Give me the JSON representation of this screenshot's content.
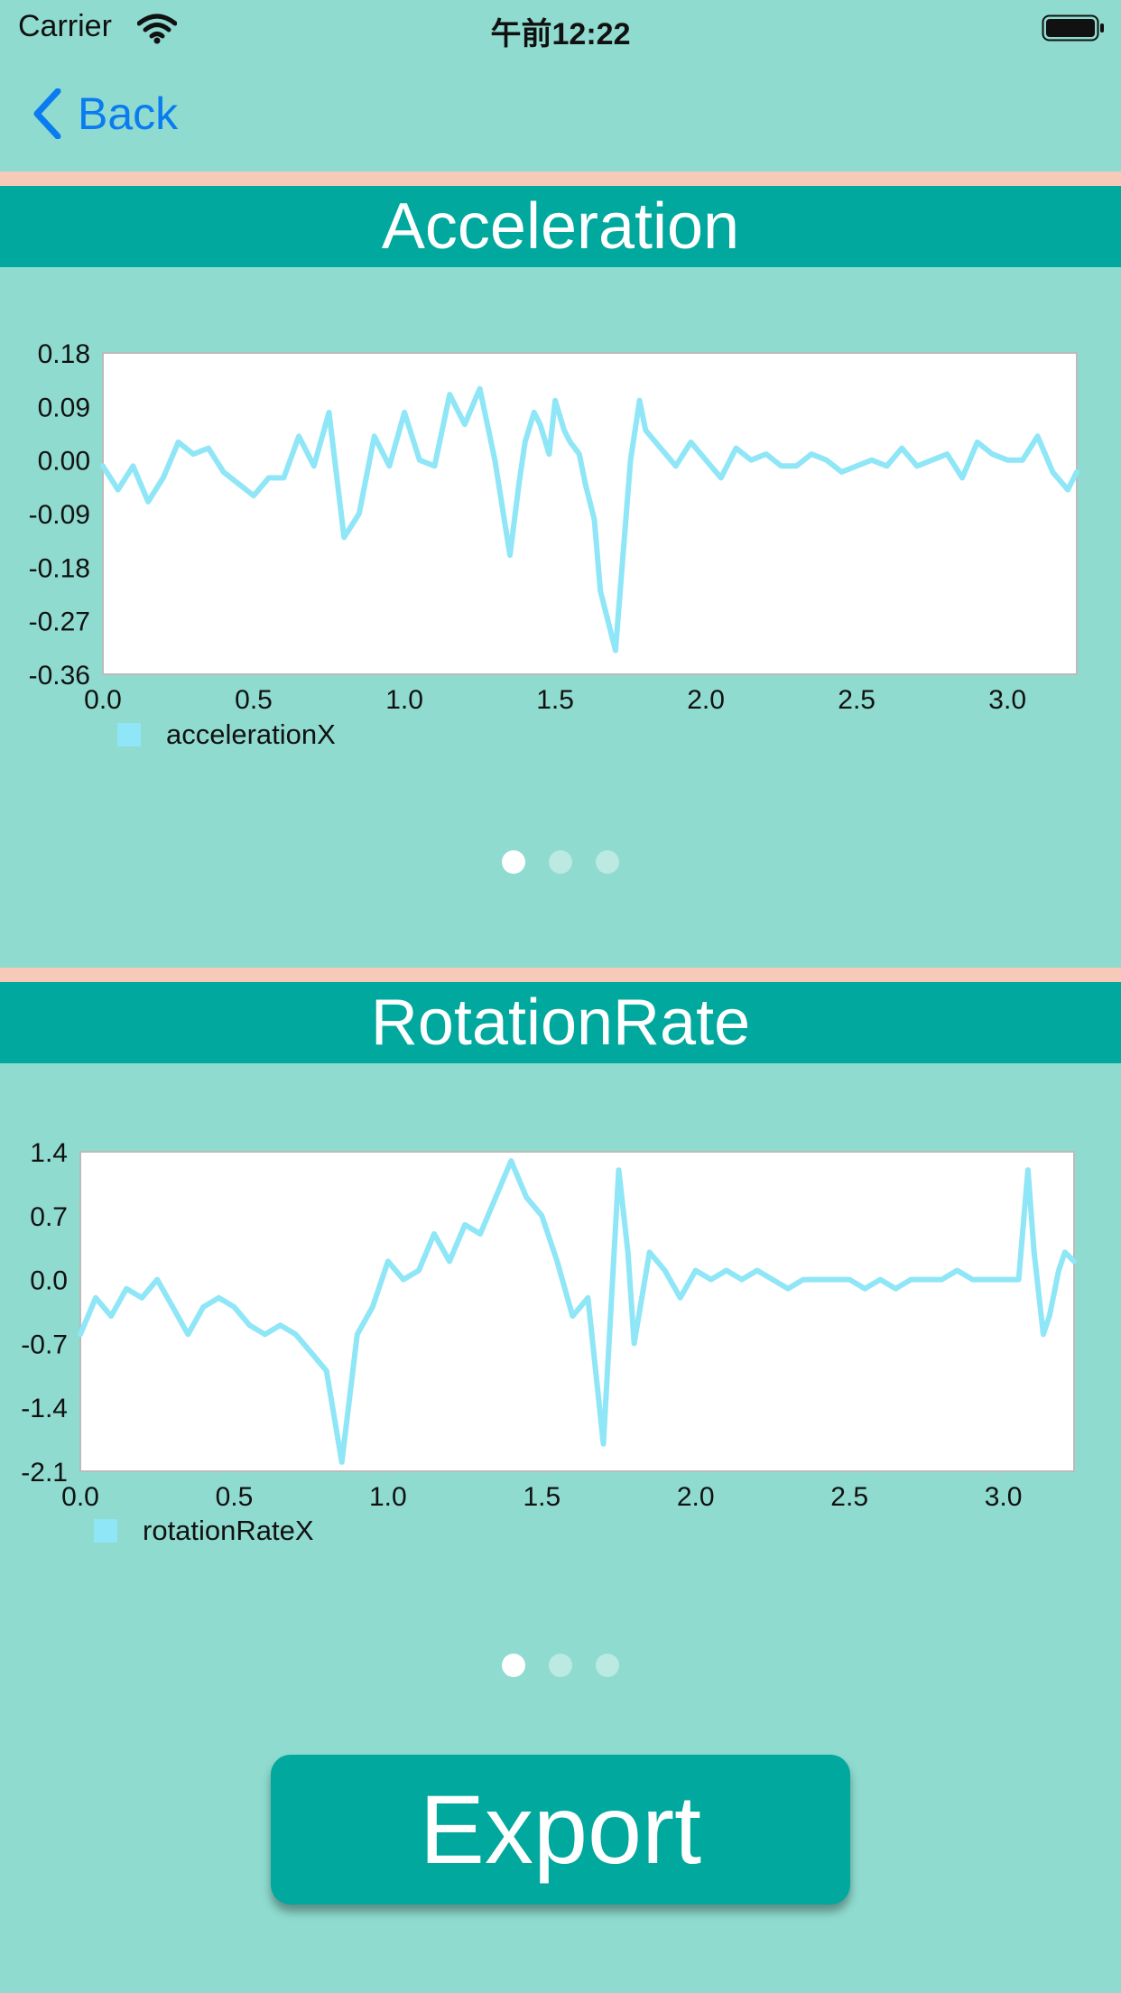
{
  "status_bar": {
    "carrier": "Carrier",
    "time": "午前12:22"
  },
  "nav": {
    "back_label": "Back"
  },
  "colors": {
    "background": "#8fdbcf",
    "header": "#00a89e",
    "divider": "#f7c9b8",
    "line": "#8ee6f6",
    "accent": "#0a7bf0"
  },
  "sections": [
    {
      "title": "Acceleration"
    },
    {
      "title": "RotationRate"
    }
  ],
  "pager": {
    "count": 3,
    "active": 0
  },
  "export_label": "Export",
  "chart_data": [
    {
      "type": "line",
      "xlim": [
        0,
        3.23
      ],
      "ylim": [
        -0.36,
        0.18
      ],
      "yticks": [
        "0.18",
        "0.09",
        "0.00",
        "-0.09",
        "-0.18",
        "-0.27",
        "-0.36"
      ],
      "xticks": [
        "0.0",
        "0.5",
        "1.0",
        "1.5",
        "2.0",
        "2.5",
        "3.0"
      ],
      "grid": false,
      "legend_position": "bottom-left",
      "series": [
        {
          "name": "accelerationX",
          "color": "#8ee6f6",
          "x": [
            0.0,
            0.05,
            0.1,
            0.15,
            0.2,
            0.25,
            0.3,
            0.35,
            0.4,
            0.45,
            0.5,
            0.55,
            0.6,
            0.65,
            0.7,
            0.75,
            0.8,
            0.85,
            0.9,
            0.95,
            1.0,
            1.05,
            1.1,
            1.15,
            1.2,
            1.25,
            1.3,
            1.35,
            1.38,
            1.4,
            1.43,
            1.45,
            1.48,
            1.5,
            1.53,
            1.55,
            1.58,
            1.6,
            1.63,
            1.65,
            1.7,
            1.75,
            1.78,
            1.8,
            1.85,
            1.9,
            1.95,
            2.0,
            2.05,
            2.1,
            2.15,
            2.2,
            2.25,
            2.3,
            2.35,
            2.4,
            2.45,
            2.5,
            2.55,
            2.6,
            2.65,
            2.7,
            2.75,
            2.8,
            2.85,
            2.9,
            2.95,
            3.0,
            3.05,
            3.1,
            3.15,
            3.2,
            3.23
          ],
          "y": [
            -0.01,
            -0.05,
            -0.01,
            -0.07,
            -0.03,
            0.03,
            0.01,
            0.02,
            -0.02,
            -0.04,
            -0.06,
            -0.03,
            -0.03,
            0.04,
            -0.01,
            0.08,
            -0.13,
            -0.09,
            0.04,
            -0.01,
            0.08,
            0.0,
            -0.01,
            0.11,
            0.06,
            0.12,
            0.0,
            -0.16,
            -0.04,
            0.03,
            0.08,
            0.06,
            0.01,
            0.1,
            0.05,
            0.03,
            0.01,
            -0.04,
            -0.1,
            -0.22,
            -0.32,
            0.0,
            0.1,
            0.05,
            0.02,
            -0.01,
            0.03,
            0.0,
            -0.03,
            0.02,
            0.0,
            0.01,
            -0.01,
            -0.01,
            0.01,
            0.0,
            -0.02,
            -0.01,
            0.0,
            -0.01,
            0.02,
            -0.01,
            0.0,
            0.01,
            -0.03,
            0.03,
            0.01,
            0.0,
            0.0,
            0.04,
            -0.02,
            -0.05,
            -0.02
          ]
        }
      ]
    },
    {
      "type": "line",
      "xlim": [
        0,
        3.23
      ],
      "ylim": [
        -2.1,
        1.4
      ],
      "yticks": [
        "1.4",
        "0.7",
        "0.0",
        "-0.7",
        "-1.4",
        "-2.1"
      ],
      "xticks": [
        "0.0",
        "0.5",
        "1.0",
        "1.5",
        "2.0",
        "2.5",
        "3.0"
      ],
      "grid": false,
      "legend_position": "bottom-left",
      "series": [
        {
          "name": "rotationRateX",
          "color": "#8ee6f6",
          "x": [
            0.0,
            0.05,
            0.1,
            0.15,
            0.2,
            0.25,
            0.3,
            0.35,
            0.4,
            0.45,
            0.5,
            0.55,
            0.6,
            0.65,
            0.7,
            0.75,
            0.8,
            0.85,
            0.9,
            0.95,
            1.0,
            1.05,
            1.1,
            1.15,
            1.2,
            1.25,
            1.3,
            1.35,
            1.4,
            1.45,
            1.5,
            1.55,
            1.6,
            1.65,
            1.7,
            1.75,
            1.78,
            1.8,
            1.85,
            1.9,
            1.95,
            2.0,
            2.05,
            2.1,
            2.15,
            2.2,
            2.25,
            2.3,
            2.35,
            2.4,
            2.45,
            2.5,
            2.55,
            2.6,
            2.65,
            2.7,
            2.75,
            2.8,
            2.85,
            2.9,
            2.95,
            3.0,
            3.05,
            3.08,
            3.1,
            3.13,
            3.15,
            3.18,
            3.2,
            3.23
          ],
          "y": [
            -0.6,
            -0.2,
            -0.4,
            -0.1,
            -0.2,
            0.0,
            -0.3,
            -0.6,
            -0.3,
            -0.2,
            -0.3,
            -0.5,
            -0.6,
            -0.5,
            -0.6,
            -0.8,
            -1.0,
            -2.0,
            -0.6,
            -0.3,
            0.2,
            0.0,
            0.1,
            0.5,
            0.2,
            0.6,
            0.5,
            0.9,
            1.3,
            0.9,
            0.7,
            0.2,
            -0.4,
            -0.2,
            -1.8,
            1.2,
            0.3,
            -0.7,
            0.3,
            0.1,
            -0.2,
            0.1,
            0.0,
            0.1,
            0.0,
            0.1,
            0.0,
            -0.1,
            0.0,
            0.0,
            0.0,
            0.0,
            -0.1,
            0.0,
            -0.1,
            0.0,
            0.0,
            0.0,
            0.1,
            0.0,
            0.0,
            0.0,
            0.0,
            1.2,
            0.3,
            -0.6,
            -0.4,
            0.1,
            0.3,
            0.2
          ]
        }
      ]
    }
  ]
}
